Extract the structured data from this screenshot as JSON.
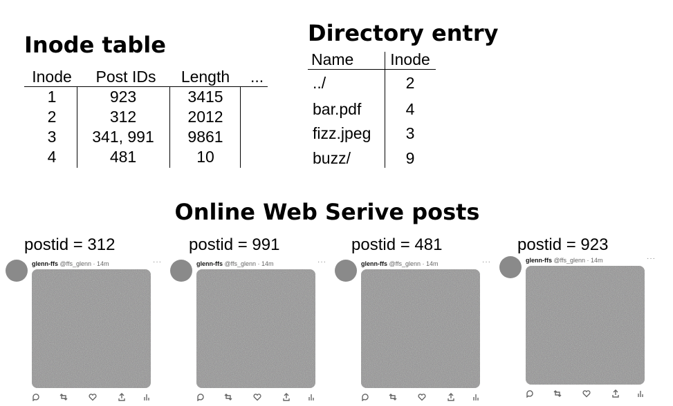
{
  "inode_table": {
    "title": "Inode table",
    "headers": [
      "Inode",
      "Post IDs",
      "Length",
      "..."
    ],
    "rows": [
      [
        "1",
        "923",
        "3415"
      ],
      [
        "2",
        "312",
        "2012"
      ],
      [
        "3",
        "341, 991",
        "9861"
      ],
      [
        "4",
        "481",
        "10"
      ]
    ]
  },
  "directory_entry": {
    "title": "Directory entry",
    "headers": [
      "Name",
      "Inode"
    ],
    "rows": [
      [
        "../",
        "2"
      ],
      [
        "bar.pdf",
        "4"
      ],
      [
        "fizz.jpeg",
        "3"
      ],
      [
        "buzz/",
        "9"
      ]
    ]
  },
  "posts_section": {
    "title": "Online Web Serive posts",
    "posts": [
      {
        "label": "postid = 312",
        "author": "glenn-ffs",
        "handle": "@ffs_glenn",
        "time": "14m"
      },
      {
        "label": "postid = 991",
        "author": "glenn-ffs",
        "handle": "@ffs_glenn",
        "time": "14m"
      },
      {
        "label": "postid = 481",
        "author": "glenn-ffs",
        "handle": "@ffs_glenn",
        "time": "14m"
      },
      {
        "label": "postid = 923",
        "author": "glenn-ffs",
        "handle": "@ffs_glenn",
        "time": "14m"
      }
    ]
  },
  "icons": {
    "more": "more-options-icon",
    "reply": "reply-icon",
    "repost": "repost-icon",
    "like": "like-icon",
    "share": "share-icon",
    "analytics": "analytics-icon"
  },
  "colors": {
    "avatar": "#8a8a8a",
    "media_noise": "#828282",
    "secondary_text": "#666666"
  }
}
